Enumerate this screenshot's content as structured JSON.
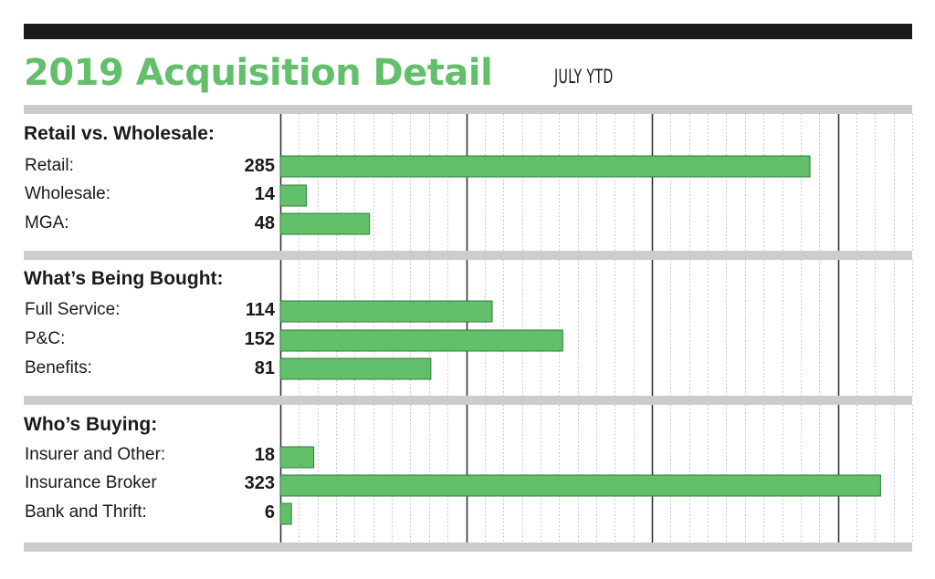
{
  "title": "2019 Acquisition Detail",
  "subtitle": "JULY YTD",
  "colors": {
    "bar": "#62bf6a",
    "title": "#62bf6a",
    "divider": "#cccccc",
    "top_bar": "#1a1a1a",
    "major_grid": "#333333",
    "minor_grid": "#bbbbbb"
  },
  "chart_data": {
    "type": "bar",
    "orientation": "horizontal",
    "xlim": [
      0,
      340
    ],
    "major_grid_interval": 100,
    "minor_grid_interval": 10,
    "grid": true,
    "axis_tick_labels_shown": false,
    "groups": [
      {
        "title": "Retail vs. Wholesale:",
        "rows": [
          {
            "label": "Retail:",
            "value": 285
          },
          {
            "label": "Wholesale:",
            "value": 14
          },
          {
            "label": "MGA:",
            "value": 48
          }
        ]
      },
      {
        "title": "What’s Being Bought:",
        "rows": [
          {
            "label": "Full Service:",
            "value": 114
          },
          {
            "label": "P&C:",
            "value": 152
          },
          {
            "label": "Benefits:",
            "value": 81
          }
        ]
      },
      {
        "title": "Who’s Buying:",
        "rows": [
          {
            "label": "Insurer and Other:",
            "value": 18
          },
          {
            "label": "Insurance Broker",
            "value": 323
          },
          {
            "label": "Bank and Thrift:",
            "value": 6
          }
        ]
      }
    ]
  }
}
